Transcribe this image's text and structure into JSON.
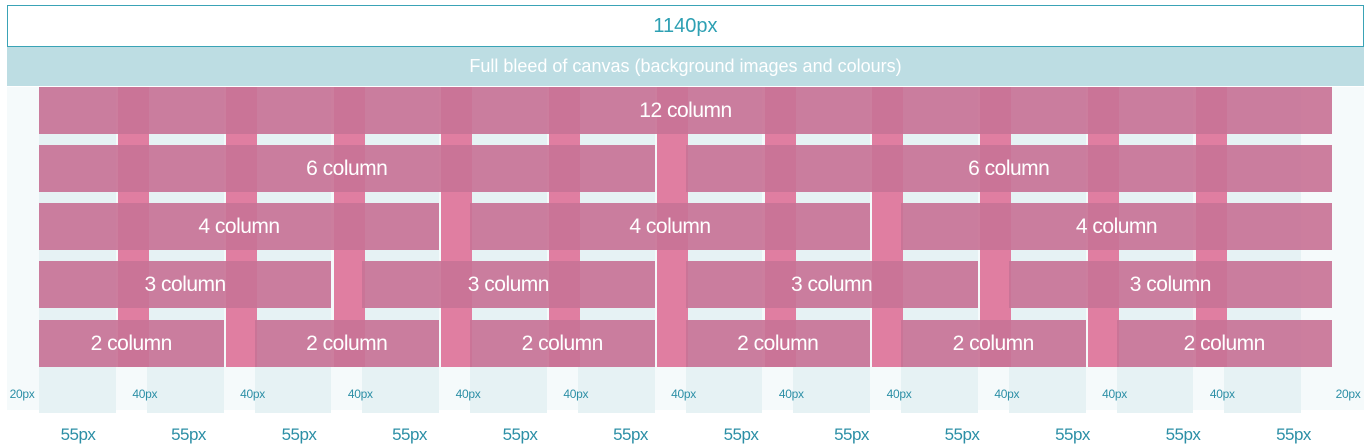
{
  "header": {
    "width_label": "1140px"
  },
  "bleed": {
    "label": "Full bleed of canvas (background images and colours)"
  },
  "rows": [
    {
      "label": "12 column",
      "count": 1
    },
    {
      "label": "6 column",
      "count": 2
    },
    {
      "label": "4 column",
      "count": 3
    },
    {
      "label": "3 column",
      "count": 4
    },
    {
      "label": "2 column",
      "count": 6
    }
  ],
  "gutter_labels": [
    "20px",
    "40px",
    "40px",
    "40px",
    "40px",
    "40px",
    "40px",
    "40px",
    "40px",
    "40px",
    "40px",
    "40px",
    "20px"
  ],
  "column_labels": [
    "55px",
    "55px",
    "55px",
    "55px",
    "55px",
    "55px",
    "55px",
    "55px",
    "55px",
    "55px",
    "55px",
    "55px"
  ],
  "colors": {
    "accent": "#2ea0b3",
    "bleed": "#bddde3",
    "column": "#e07ea1",
    "bar": "#c87396",
    "gutter": "#e6f2f4"
  }
}
